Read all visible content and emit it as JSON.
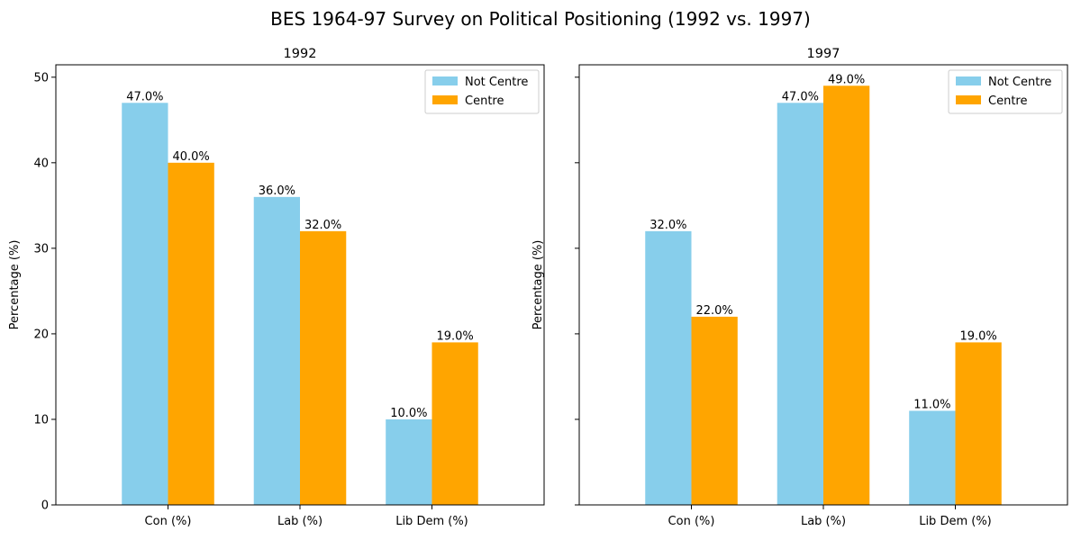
{
  "figure": {
    "title": "BES 1964-97 Survey on Political Positioning (1992 vs. 1997)"
  },
  "colors": {
    "not_centre": "#87CEEB",
    "centre": "#FFA500"
  },
  "chart_data": [
    {
      "type": "bar",
      "title": "1992",
      "ylabel": "Percentage (%)",
      "xlabel": "",
      "categories": [
        "Con (%)",
        "Lab (%)",
        "Lib Dem (%)"
      ],
      "series": [
        {
          "name": "Not Centre",
          "values": [
            47,
            36,
            10
          ]
        },
        {
          "name": "Centre",
          "values": [
            40,
            32,
            19
          ]
        }
      ],
      "ylim": [
        0,
        51.45
      ],
      "yticks": [
        0,
        10,
        20,
        30,
        40,
        50
      ],
      "show_ytick_labels": true,
      "legend": "top-right",
      "grid": false,
      "data_label_format": "{v}.0%"
    },
    {
      "type": "bar",
      "title": "1997",
      "ylabel": "Percentage (%)",
      "xlabel": "",
      "categories": [
        "Con (%)",
        "Lab (%)",
        "Lib Dem (%)"
      ],
      "series": [
        {
          "name": "Not Centre",
          "values": [
            32,
            47,
            11
          ]
        },
        {
          "name": "Centre",
          "values": [
            22,
            49,
            19
          ]
        }
      ],
      "ylim": [
        0,
        51.45
      ],
      "yticks": [
        0,
        10,
        20,
        30,
        40,
        50
      ],
      "show_ytick_labels": false,
      "legend": "top-right",
      "grid": false,
      "data_label_format": "{v}.0%"
    }
  ]
}
